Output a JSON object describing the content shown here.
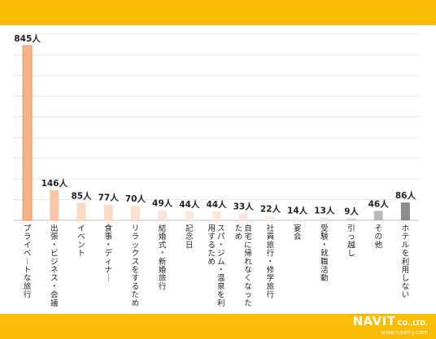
{
  "chart_data": {
    "type": "bar",
    "unit": "人",
    "categories": [
      "プライベートな旅行",
      "出張・ビジネス・会議",
      "イベント",
      "食事・ディナー",
      "リラックスをするため",
      "結婚式・新婚旅行",
      "記念日",
      "スパ・ジム・温泉を利用するため",
      "自宅に帰れなくなったため",
      "社員旅行・修学旅行",
      "宴会",
      "受験・就職活動",
      "引っ越し",
      "その他",
      "ホテルを利用しない"
    ],
    "values": [
      845,
      146,
      85,
      77,
      70,
      49,
      44,
      44,
      33,
      22,
      14,
      13,
      9,
      46,
      86
    ],
    "value_labels": [
      "845人",
      "146人",
      "85人",
      "77人",
      "70人",
      "49人",
      "44人",
      "44人",
      "33人",
      "22人",
      "14人",
      "13人",
      "9人",
      "46人",
      "86人"
    ],
    "ylim": [
      0,
      900
    ],
    "grid": true,
    "bar_colors": [
      "#f7b386",
      "#f8c8a6",
      "#fadac4",
      "#fadac4",
      "#fbe1cf",
      "#fce6d8",
      "#fce9dc",
      "#fce9dc",
      "#fde6da",
      "#fdeee4",
      "#fbeeee",
      "#dbe8f6",
      "#b7d6f2",
      "#b9b9b9",
      "#8c8c8c"
    ],
    "bar_edge_color": "#e8824a"
  },
  "logo": {
    "name": "NAVIT",
    "suffix": "CO.,LTD.",
    "url": "www.navit-j.com"
  }
}
